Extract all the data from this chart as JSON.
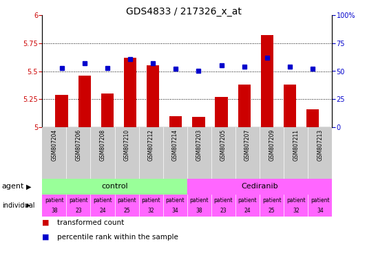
{
  "title": "GDS4833 / 217326_x_at",
  "samples": [
    "GSM807204",
    "GSM807206",
    "GSM807208",
    "GSM807210",
    "GSM807212",
    "GSM807214",
    "GSM807203",
    "GSM807205",
    "GSM807207",
    "GSM807209",
    "GSM807211",
    "GSM807213"
  ],
  "bar_values": [
    5.29,
    5.46,
    5.3,
    5.62,
    5.55,
    5.1,
    5.09,
    5.27,
    5.38,
    5.82,
    5.38,
    5.16
  ],
  "dot_values": [
    53,
    57,
    53,
    61,
    57,
    52,
    50,
    55,
    54,
    62,
    54,
    52
  ],
  "ymin": 5.0,
  "ymax": 6.0,
  "yticks": [
    5.0,
    5.25,
    5.5,
    5.75,
    6.0
  ],
  "y2min": 0,
  "y2max": 100,
  "y2ticks": [
    0,
    25,
    50,
    75,
    100
  ],
  "bar_color": "#cc0000",
  "dot_color": "#0000cc",
  "agent_control_color": "#99ff99",
  "agent_cediranib_color": "#ff66ff",
  "sample_label_color": "#cccccc",
  "individual_color": "#ff66ff",
  "tick_color_left": "#cc0000",
  "tick_color_right": "#0000cc",
  "legend_bar_label": "transformed count",
  "legend_dot_label": "percentile rank within the sample",
  "patients": [
    "patient\n38",
    "patient\n23",
    "patient\n24",
    "patient\n25",
    "patient\n32",
    "patient\n34",
    "patient\n38",
    "patient\n23",
    "patient\n24",
    "patient\n25",
    "patient\n32",
    "patient\n34"
  ]
}
